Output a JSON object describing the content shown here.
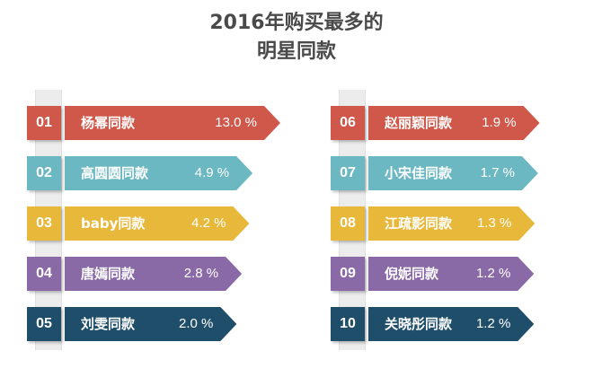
{
  "title": {
    "line1": "2016年购买最多的",
    "line2": "明星同款"
  },
  "colors": [
    "#d0584a",
    "#6cb8c2",
    "#e8b83a",
    "#8a6aa6",
    "#1f4e6b"
  ],
  "chart_data": {
    "type": "bar",
    "title": "2016年购买最多的明星同款",
    "unit": "%",
    "items": [
      {
        "rank": "01",
        "name": "杨幂同款",
        "value": 13.0,
        "label": "13.0 %"
      },
      {
        "rank": "02",
        "name": "高圆圆同款",
        "value": 4.9,
        "label": "4.9 %"
      },
      {
        "rank": "03",
        "name": "baby同款",
        "value": 4.2,
        "label": "4.2 %"
      },
      {
        "rank": "04",
        "name": "唐嫣同款",
        "value": 2.8,
        "label": "2.8 %"
      },
      {
        "rank": "05",
        "name": "刘雯同款",
        "value": 2.0,
        "label": "2.0 %"
      },
      {
        "rank": "06",
        "name": "赵丽颖同款",
        "value": 1.9,
        "label": "1.9 %"
      },
      {
        "rank": "07",
        "name": "小宋佳同款",
        "value": 1.7,
        "label": "1.7 %"
      },
      {
        "rank": "08",
        "name": "江疏影同款",
        "value": 1.3,
        "label": "1.3 %"
      },
      {
        "rank": "09",
        "name": "倪妮同款",
        "value": 1.2,
        "label": "1.2 %"
      },
      {
        "rank": "10",
        "name": "关晓彤同款",
        "value": 1.2,
        "label": "1.2 %"
      }
    ]
  }
}
